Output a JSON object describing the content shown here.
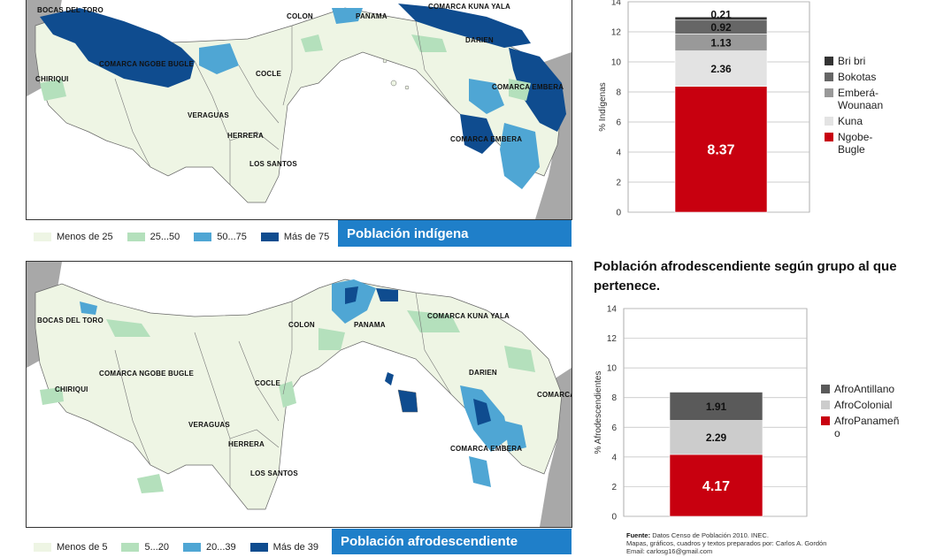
{
  "colors": {
    "lvl1": "#eef5e4",
    "lvl2": "#b4e0bc",
    "lvl3": "#4fa6d4",
    "lvl4": "#0f4c8f",
    "ngobe": "#c8000f",
    "kuna": "#e3e3e3",
    "embera": "#999999",
    "bokotas": "#666666",
    "bribri": "#333333",
    "banner": "#1f7fc9"
  },
  "map_top": {
    "labels": [
      "BOCAS DEL TORO",
      "COLON",
      "PANAMA",
      "COMARCA KUNA YALA",
      "DARIEN",
      "COMARCA NGOBE BUGLE",
      "CHIRIQUI",
      "COCLE",
      "COMARCA EMBERA",
      "VERAGUAS",
      "HERRERA",
      "COMARCA EMBERA",
      "LOS SANTOS"
    ],
    "legend": [
      {
        "label": "Menos de 25",
        "color": "#eef5e4"
      },
      {
        "label": "25...50",
        "color": "#b4e0bc"
      },
      {
        "label": "50...75",
        "color": "#4fa6d4"
      },
      {
        "label": "Más de 75",
        "color": "#0f4c8f"
      }
    ],
    "banner": "Población indígena"
  },
  "map_bottom": {
    "labels": [
      "BOCAS DEL TORO",
      "COMARCA KUNA YALA",
      "COLON",
      "PANAMA",
      "COMARCA NGOBE BUGLE",
      "COCLE",
      "DARIEN",
      "CHIRIQUI",
      "COMARCA EMBERA",
      "VERAGUAS",
      "HERRERA",
      "LOS SANTOS",
      "COMARCA EMBERA"
    ],
    "legend": [
      {
        "label": "Menos de 5",
        "color": "#eef5e4"
      },
      {
        "label": "5...20",
        "color": "#b4e0bc"
      },
      {
        "label": "20...39",
        "color": "#4fa6d4"
      },
      {
        "label": "Más de 39",
        "color": "#0f4c8f"
      }
    ],
    "banner": "Población afrodescendiente"
  },
  "chart_data": [
    {
      "type": "bar",
      "stacked": true,
      "title": "",
      "ylabel": "% Indígenas",
      "ylim": [
        0,
        14
      ],
      "yticks": [
        "0",
        "2",
        "4",
        "6",
        "8",
        "10",
        "12",
        "14"
      ],
      "series": [
        {
          "name": "Ngobe-Bugle",
          "value": 8.37,
          "label": "8.37",
          "color": "#c8000f"
        },
        {
          "name": "Kuna",
          "value": 2.36,
          "label": "2.36",
          "color": "#e3e3e3"
        },
        {
          "name": "Emberá-Wounaan",
          "value": 1.13,
          "label": "1.13",
          "color": "#999999"
        },
        {
          "name": "Bokotas",
          "value": 0.92,
          "label": "0.92",
          "color": "#666666"
        },
        {
          "name": "Bri bri",
          "value": 0.21,
          "label": "0.21",
          "color": "#333333"
        }
      ],
      "legend": [
        "Bri bri",
        "Bokotas",
        "Emberá-Wounaan",
        "Kuna",
        "Ngobe-Bugle"
      ],
      "grid": true,
      "legend_position": "right"
    },
    {
      "type": "bar",
      "stacked": true,
      "title": "Población afrodescendiente según grupo al que pertenece.",
      "ylabel": "% Afrodescendientes",
      "ylim": [
        0,
        14
      ],
      "yticks": [
        "0",
        "2",
        "4",
        "6",
        "8",
        "10",
        "12",
        "14"
      ],
      "series": [
        {
          "name": "AfroPanameño",
          "value": 4.17,
          "label": "4.17",
          "color": "#c8000f"
        },
        {
          "name": "AfroColonial",
          "value": 2.29,
          "label": "2.29",
          "color": "#cccccc"
        },
        {
          "name": "AfroAntillano",
          "value": 1.91,
          "label": "1.91",
          "color": "#5a5a5a"
        }
      ],
      "legend": [
        "AfroAntillano",
        "AfroColonial",
        "AfroPanameño"
      ],
      "grid": true,
      "legend_position": "right"
    }
  ],
  "footer": {
    "source_label": "Fuente:",
    "source_text": "Datos Censo de Población 2010. INEC.",
    "line2": "Mapas, gráficos, cuadros y textos preparados por: Carlos A. Gordón",
    "line3": "Email: carlosg16@gmail.com"
  }
}
